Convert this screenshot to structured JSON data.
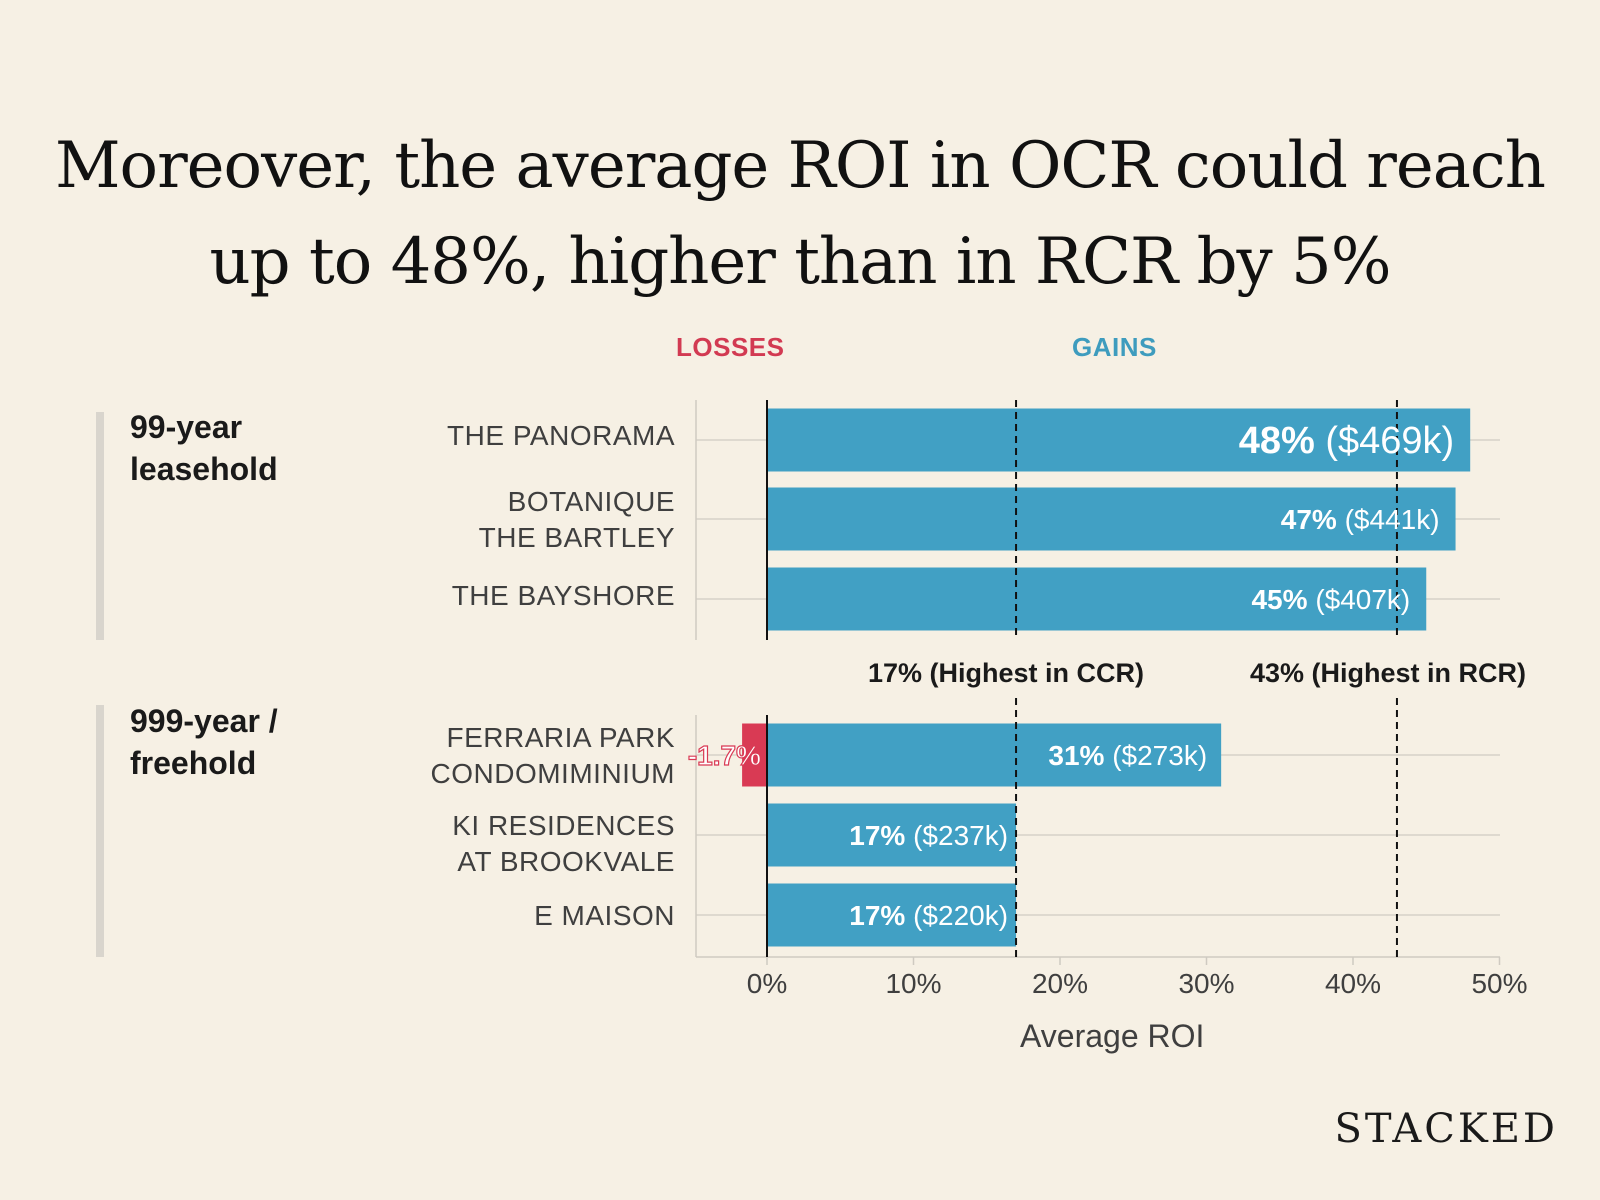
{
  "title": {
    "line1": "Moreover, the average ROI in OCR could reach",
    "line2": "up to 48%, higher than in RCR by 5%"
  },
  "headers": {
    "losses": "LOSSES",
    "gains": "GAINS"
  },
  "groups": [
    {
      "label_line1": "99-year",
      "label_line2": "leasehold"
    },
    {
      "label_line1": "999-year /",
      "label_line2": "freehold"
    }
  ],
  "categories": [
    {
      "line1": "THE PANORAMA",
      "line2": ""
    },
    {
      "line1": "BOTANIQUE",
      "line2": "THE BARTLEY"
    },
    {
      "line1": "THE BAYSHORE",
      "line2": ""
    },
    {
      "line1": "FERRARIA PARK",
      "line2": "CONDOMIMINIUM"
    },
    {
      "line1": "KI RESIDENCES",
      "line2": "AT BROOKVALE"
    },
    {
      "line1": "E MAISON",
      "line2": ""
    }
  ],
  "reference_lines": {
    "ccr": "17% (Highest in CCR)",
    "rcr": "43% (Highest in RCR)"
  },
  "x_axis_label": "Average ROI",
  "brand": "STACKED",
  "colors": {
    "gain": "#41a0c4",
    "loss": "#d93a54",
    "background": "#f6f0e4"
  },
  "chart_data": {
    "type": "bar",
    "orientation": "horizontal",
    "xlabel": "Average ROI",
    "xlim": [
      -5,
      50
    ],
    "xticks": [
      0,
      10,
      20,
      30,
      40,
      50
    ],
    "xtick_labels": [
      "0%",
      "10%",
      "20%",
      "30%",
      "40%",
      "50%"
    ],
    "categories": [
      "THE PANORAMA",
      "BOTANIQUE THE BARTLEY",
      "THE BAYSHORE",
      "FERRARIA PARK CONDOMIMINIUM",
      "KI RESIDENCES AT BROOKVALE",
      "E MAISON"
    ],
    "groups": [
      "99-year leasehold",
      "99-year leasehold",
      "99-year leasehold",
      "999-year / freehold",
      "999-year / freehold",
      "999-year / freehold"
    ],
    "gains": [
      48,
      47,
      45,
      31,
      17,
      17
    ],
    "gain_labels_pct": [
      "48%",
      "47%",
      "45%",
      "31%",
      "17%",
      "17%"
    ],
    "gain_labels_amt": [
      "($469k)",
      "($441k)",
      "($407k)",
      "($273k)",
      "($237k)",
      "($220k)"
    ],
    "losses": [
      0,
      0,
      0,
      -1.7,
      0,
      0
    ],
    "loss_labels": [
      "",
      "",
      "",
      "-1.7%",
      "",
      ""
    ],
    "reference_values": [
      17,
      43
    ]
  }
}
